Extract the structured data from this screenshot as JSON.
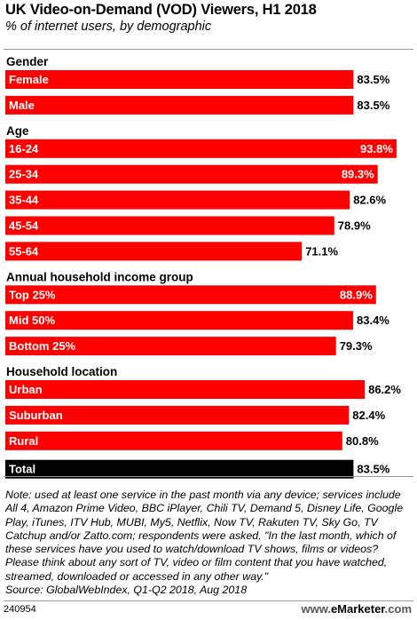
{
  "title": "UK Video-on-Demand (VOD) Viewers, H1 2018",
  "subtitle": "% of internet users, by demographic",
  "colors": {
    "bar": "#ff0000",
    "total_bar": "#000000",
    "label": "#ffffff",
    "value": "#000000"
  },
  "chart_data": {
    "type": "bar",
    "orientation": "horizontal",
    "unit": "%",
    "xlim": [
      0,
      100
    ],
    "grid": false,
    "groups": [
      {
        "name": "Gender",
        "categories": [
          "Female",
          "Male"
        ],
        "values": [
          83.5,
          83.5
        ]
      },
      {
        "name": "Age",
        "categories": [
          "16-24",
          "25-34",
          "35-44",
          "45-54",
          "55-64"
        ],
        "values": [
          93.8,
          89.3,
          82.6,
          78.9,
          71.1
        ]
      },
      {
        "name": "Annual household income group",
        "categories": [
          "Top 25%",
          "Mid 50%",
          "Bottom 25%"
        ],
        "values": [
          88.9,
          83.4,
          79.3
        ]
      },
      {
        "name": "Household location",
        "categories": [
          "Urban",
          "Suburban",
          "Rural"
        ],
        "values": [
          86.2,
          82.4,
          80.8
        ]
      },
      {
        "name": "",
        "categories": [
          "Total"
        ],
        "values": [
          83.5
        ]
      }
    ],
    "value_labels": {
      "Female": "83.5%",
      "Male": "83.5%",
      "16-24": "93.8%",
      "25-34": "89.3%",
      "35-44": "82.6%",
      "45-54": "78.9%",
      "55-64": "71.1%",
      "Top 25%": "88.9%",
      "Mid 50%": "83.4%",
      "Bottom 25%": "79.3%",
      "Urban": "86.2%",
      "Suburban": "82.4%",
      "Rural": "80.8%",
      "Total": "83.5%"
    }
  },
  "note": "Note: used at least one service in the past month via any device; services include All 4, Amazon Prime Video, BBC iPlayer, Chili TV, Demand 5, Disney Life, Google Play, iTunes, ITV Hub, MUBI, My5, Netflix, Now TV, Rakuten TV, Sky Go, TV Catchup and/or Zatto.com; respondents were asked, \"In the last month, which of these services have you used to watch/download TV shows, films or videos? Please think about any sort of TV, video or film content that you have watched, streamed, downloaded or accessed in any other way.\"",
  "source": "Source: GlobalWebIndex, Q1-Q2 2018, Aug 2018",
  "chart_id": "240954",
  "logo": {
    "prefix": "www.",
    "brand": "eMarketer",
    "suffix": ".com"
  }
}
